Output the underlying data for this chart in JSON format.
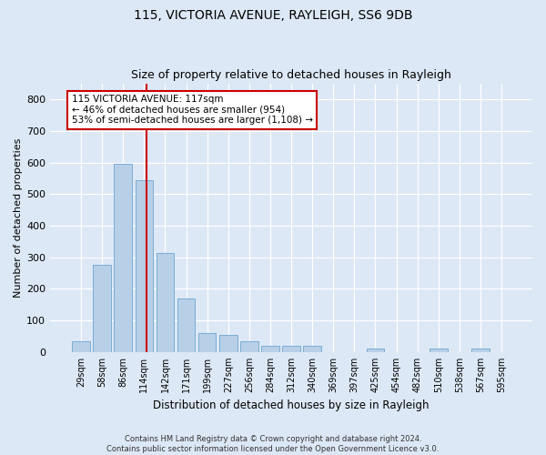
{
  "title1": "115, VICTORIA AVENUE, RAYLEIGH, SS6 9DB",
  "title2": "Size of property relative to detached houses in Rayleigh",
  "xlabel": "Distribution of detached houses by size in Rayleigh",
  "ylabel": "Number of detached properties",
  "categories": [
    "29sqm",
    "58sqm",
    "86sqm",
    "114sqm",
    "142sqm",
    "171sqm",
    "199sqm",
    "227sqm",
    "256sqm",
    "284sqm",
    "312sqm",
    "340sqm",
    "369sqm",
    "397sqm",
    "425sqm",
    "454sqm",
    "482sqm",
    "510sqm",
    "538sqm",
    "567sqm",
    "595sqm"
  ],
  "values": [
    35,
    275,
    595,
    545,
    315,
    170,
    60,
    55,
    35,
    20,
    20,
    20,
    0,
    0,
    10,
    0,
    0,
    10,
    0,
    10,
    0
  ],
  "bar_color": "#b8cfe8",
  "bar_edge_color": "#7aadd4",
  "bar_width": 0.85,
  "marker_color": "#cc0000",
  "ylim": [
    0,
    850
  ],
  "yticks": [
    0,
    100,
    200,
    300,
    400,
    500,
    600,
    700,
    800
  ],
  "annotation_title": "115 VICTORIA AVENUE: 117sqm",
  "annotation_line1": "← 46% of detached houses are smaller (954)",
  "annotation_line2": "53% of semi-detached houses are larger (1,108) →",
  "annotation_box_color": "#ffffff",
  "annotation_box_edge": "#cc0000",
  "bg_color": "#dce8f5",
  "plot_bg_color": "#dce8f5",
  "grid_color": "#ffffff",
  "footer1": "Contains HM Land Registry data © Crown copyright and database right 2024.",
  "footer2": "Contains public sector information licensed under the Open Government Licence v3.0."
}
